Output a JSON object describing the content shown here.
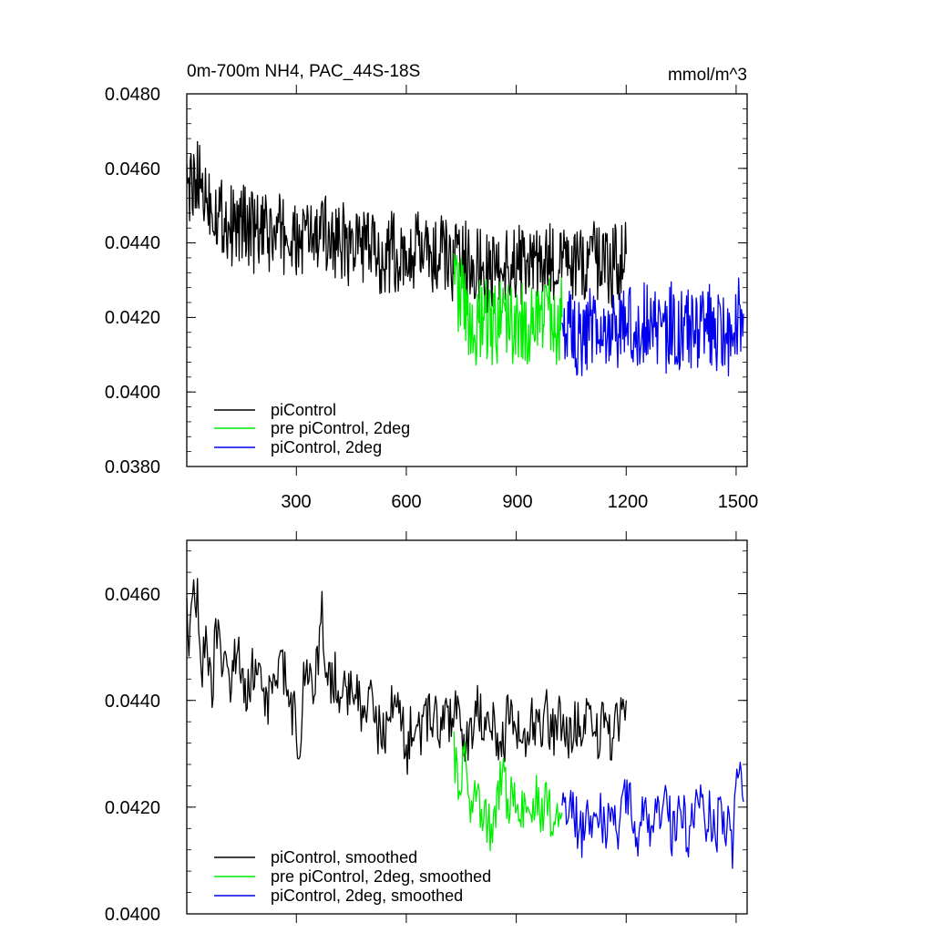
{
  "chart_data": [
    {
      "type": "line",
      "title_left": "0m-700m NH4, PAC_44S-18S",
      "title_right": "mmol/m^3",
      "xlim": [
        1,
        1530
      ],
      "ylim": [
        0.038,
        0.048
      ],
      "x_ticks": [
        300,
        600,
        900,
        1200,
        1500
      ],
      "x_tick_labels": [
        "300",
        "600",
        "900",
        "1200",
        "1500"
      ],
      "y_ticks": [
        0.038,
        0.04,
        0.042,
        0.044,
        0.046,
        0.048
      ],
      "y_tick_labels": [
        "0.0380",
        "0.0400",
        "0.0420",
        "0.0440",
        "0.0460",
        "0.0480"
      ],
      "legend": [
        "piControl",
        "pre piControl, 2deg",
        "piControl, 2deg"
      ],
      "series": [
        {
          "name": "piControl",
          "color": "#000000",
          "x": [
            1,
            20,
            40,
            60,
            80,
            100,
            120,
            140,
            160,
            180,
            200,
            220,
            240,
            260,
            280,
            300,
            320,
            340,
            360,
            380,
            400,
            420,
            440,
            460,
            480,
            500,
            520,
            540,
            560,
            580,
            600,
            620,
            640,
            660,
            680,
            700,
            720,
            740,
            760,
            780,
            800,
            820,
            840,
            860,
            880,
            900,
            920,
            940,
            960,
            980,
            1000,
            1020,
            1040,
            1060,
            1080,
            1100,
            1120,
            1140,
            1160,
            1180,
            1200
          ],
          "y": [
            0.0452,
            0.0458,
            0.0455,
            0.0452,
            0.0449,
            0.0447,
            0.0445,
            0.0444,
            0.0446,
            0.0443,
            0.0442,
            0.0442,
            0.0441,
            0.0443,
            0.044,
            0.0439,
            0.0441,
            0.0442,
            0.044,
            0.0443,
            0.0441,
            0.0441,
            0.0439,
            0.0438,
            0.044,
            0.0437,
            0.0437,
            0.0436,
            0.0438,
            0.0435,
            0.0434,
            0.0438,
            0.0437,
            0.0436,
            0.0435,
            0.0437,
            0.0434,
            0.0436,
            0.0435,
            0.0437,
            0.0433,
            0.0432,
            0.0434,
            0.0433,
            0.0435,
            0.0434,
            0.0434,
            0.0436,
            0.0433,
            0.0435,
            0.0434,
            0.0437,
            0.0433,
            0.0434,
            0.0432,
            0.0436,
            0.0434,
            0.0437,
            0.0433,
            0.0435,
            0.0437
          ]
        },
        {
          "name": "pre piControl, 2deg",
          "color": "#00ee00",
          "x": [
            730,
            750,
            770,
            790,
            810,
            830,
            850,
            870,
            890,
            910,
            930,
            950,
            970,
            990,
            1010,
            1025
          ],
          "y": [
            0.0428,
            0.0425,
            0.042,
            0.0418,
            0.0422,
            0.0416,
            0.0419,
            0.0421,
            0.0417,
            0.042,
            0.0418,
            0.0421,
            0.0419,
            0.0422,
            0.0418,
            0.042
          ]
        },
        {
          "name": "piControl, 2deg",
          "color": "#0000ee",
          "x": [
            1025,
            1045,
            1065,
            1085,
            1105,
            1125,
            1145,
            1165,
            1185,
            1205,
            1225,
            1245,
            1265,
            1285,
            1305,
            1325,
            1345,
            1365,
            1385,
            1405,
            1425,
            1445,
            1465,
            1485,
            1505,
            1520
          ],
          "y": [
            0.0418,
            0.0417,
            0.0415,
            0.0413,
            0.0419,
            0.0416,
            0.0418,
            0.0415,
            0.0417,
            0.042,
            0.0416,
            0.0418,
            0.0421,
            0.0417,
            0.0415,
            0.0419,
            0.0416,
            0.0418,
            0.0414,
            0.0417,
            0.0419,
            0.0415,
            0.0417,
            0.0413,
            0.042,
            0.0421
          ]
        }
      ]
    },
    {
      "type": "line",
      "xlim": [
        1,
        1530
      ],
      "ylim": [
        0.04,
        0.047
      ],
      "x_ticks": [
        300,
        600,
        900,
        1200,
        1500
      ],
      "y_ticks": [
        0.04,
        0.042,
        0.044,
        0.046
      ],
      "y_tick_labels": [
        "0.0400",
        "0.0420",
        "0.0440",
        "0.0460"
      ],
      "legend": [
        "piControl, smoothed",
        "pre piControl, 2deg, smoothed",
        "piControl, 2deg, smoothed"
      ],
      "series": [
        {
          "name": "piControl, smoothed",
          "color": "#000000",
          "x": [
            1,
            10,
            20,
            30,
            40,
            50,
            60,
            70,
            80,
            90,
            100,
            120,
            140,
            160,
            180,
            200,
            220,
            240,
            260,
            280,
            300,
            310,
            320,
            340,
            360,
            370,
            380,
            400,
            420,
            440,
            460,
            480,
            500,
            520,
            540,
            560,
            580,
            600,
            620,
            640,
            660,
            680,
            700,
            720,
            740,
            760,
            780,
            800,
            820,
            840,
            860,
            880,
            900,
            920,
            940,
            960,
            980,
            1000,
            1020,
            1040,
            1060,
            1080,
            1100,
            1120,
            1140,
            1160,
            1180,
            1200
          ],
          "y": [
            0.0455,
            0.045,
            0.046,
            0.0458,
            0.0445,
            0.045,
            0.0448,
            0.044,
            0.0453,
            0.045,
            0.0448,
            0.0442,
            0.045,
            0.044,
            0.0445,
            0.0446,
            0.044,
            0.0443,
            0.0448,
            0.044,
            0.0436,
            0.043,
            0.0444,
            0.0442,
            0.0446,
            0.0456,
            0.044,
            0.0445,
            0.0442,
            0.044,
            0.0443,
            0.0437,
            0.0441,
            0.0435,
            0.0433,
            0.0438,
            0.0439,
            0.043,
            0.0437,
            0.0432,
            0.0438,
            0.0436,
            0.0435,
            0.0437,
            0.0438,
            0.0432,
            0.0435,
            0.0439,
            0.0433,
            0.0436,
            0.043,
            0.0438,
            0.0436,
            0.0433,
            0.0437,
            0.0434,
            0.0438,
            0.0434,
            0.0437,
            0.0433,
            0.0436,
            0.0435,
            0.0438,
            0.0433,
            0.0436,
            0.0433,
            0.0437,
            0.044
          ]
        },
        {
          "name": "pre piControl, 2deg, smoothed",
          "color": "#00ee00",
          "x": [
            730,
            745,
            760,
            775,
            790,
            805,
            820,
            835,
            850,
            865,
            880,
            895,
            910,
            925,
            940,
            955,
            970,
            985,
            1000,
            1015,
            1025
          ],
          "y": [
            0.043,
            0.0425,
            0.0428,
            0.0422,
            0.0426,
            0.042,
            0.0418,
            0.0413,
            0.0422,
            0.0427,
            0.0419,
            0.0424,
            0.0417,
            0.0421,
            0.0419,
            0.0423,
            0.0418,
            0.0422,
            0.0417,
            0.0421,
            0.0419
          ]
        },
        {
          "name": "piControl, 2deg, smoothed",
          "color": "#0000ee",
          "x": [
            1025,
            1040,
            1055,
            1070,
            1085,
            1100,
            1115,
            1130,
            1145,
            1160,
            1175,
            1190,
            1205,
            1220,
            1235,
            1250,
            1265,
            1280,
            1295,
            1310,
            1325,
            1340,
            1355,
            1370,
            1385,
            1400,
            1415,
            1430,
            1445,
            1460,
            1475,
            1490,
            1505,
            1520
          ],
          "y": [
            0.042,
            0.0417,
            0.042,
            0.0416,
            0.0414,
            0.0418,
            0.0415,
            0.0419,
            0.0417,
            0.0421,
            0.0416,
            0.0419,
            0.0422,
            0.0418,
            0.0415,
            0.0424,
            0.0417,
            0.0419,
            0.0416,
            0.0421,
            0.0415,
            0.0418,
            0.042,
            0.0414,
            0.0417,
            0.0421,
            0.0416,
            0.0419,
            0.0415,
            0.042,
            0.0417,
            0.0413,
            0.0425,
            0.0421
          ]
        }
      ]
    }
  ]
}
